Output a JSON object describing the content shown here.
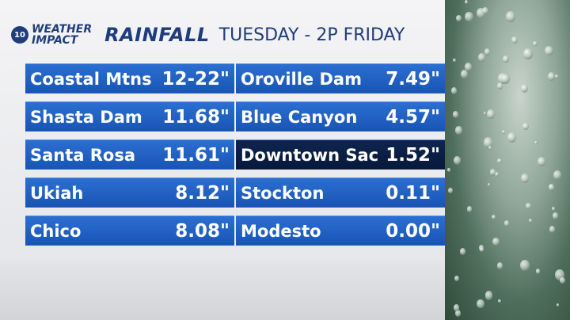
{
  "header": {
    "badge": "10",
    "brand_line1": "WEATHER",
    "brand_line2": "IMPACT",
    "title": "RAINFALL",
    "subtitle": "TUESDAY - 2P FRIDAY"
  },
  "table": {
    "columns": [
      {
        "rows": [
          {
            "name": "Coastal Mtns",
            "value": "12-22\""
          },
          {
            "name": "Shasta Dam",
            "value": "11.68\""
          },
          {
            "name": "Santa Rosa",
            "value": "11.61\""
          },
          {
            "name": "Ukiah",
            "value": "8.12\""
          },
          {
            "name": "Chico",
            "value": "8.08\""
          }
        ]
      },
      {
        "rows": [
          {
            "name": "Oroville Dam",
            "value": "7.49\""
          },
          {
            "name": "Blue Canyon",
            "value": "4.57\""
          },
          {
            "name": "Downtown Sac",
            "value": "1.52\"",
            "highlighted": true
          },
          {
            "name": "Stockton",
            "value": "0.11\""
          },
          {
            "name": "Modesto",
            "value": "0.00\""
          }
        ]
      }
    ]
  }
}
